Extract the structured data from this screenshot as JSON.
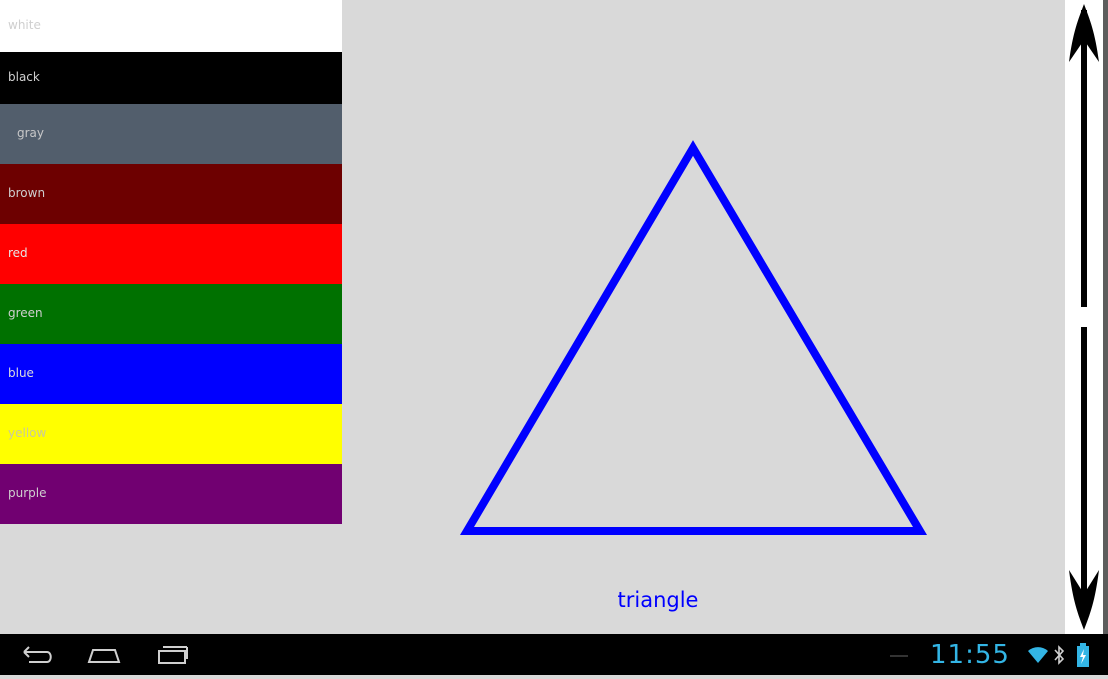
{
  "colors": [
    {
      "label": "white",
      "bg": "#ffffff",
      "fg": "#cfcfcf"
    },
    {
      "label": "black",
      "bg": "#000000",
      "fg": "#d0d0d0"
    },
    {
      "label": "gray",
      "bg": "#525e6c",
      "fg": "#c8c8c8"
    },
    {
      "label": "brown",
      "bg": "#6d0000",
      "fg": "#cfcfcf"
    },
    {
      "label": "red",
      "bg": "#ff0000",
      "fg": "#e6e6e6"
    },
    {
      "label": "green",
      "bg": "#007100",
      "fg": "#d0d0d0"
    },
    {
      "label": "blue",
      "bg": "#0000ff",
      "fg": "#dcdcdc"
    },
    {
      "label": "yellow",
      "bg": "#ffff00",
      "fg": "#c8c8a0"
    },
    {
      "label": "purple",
      "bg": "#710071",
      "fg": "#d0d0d0"
    }
  ],
  "shape": {
    "label": "triangle",
    "stroke_color": "#0000ff"
  },
  "status_bar": {
    "time": "11:55",
    "accent_color": "#33b5e5"
  },
  "nav": {
    "back": "back-icon",
    "home": "home-icon",
    "recents": "recents-icon"
  }
}
